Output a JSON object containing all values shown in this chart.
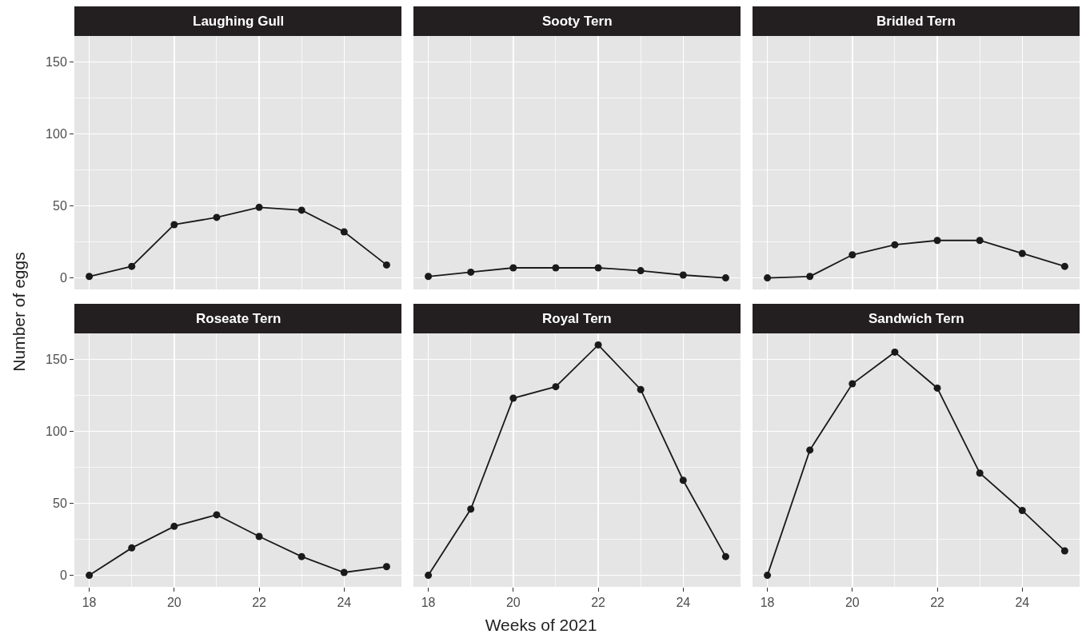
{
  "chart_data": [
    {
      "type": "line",
      "title": "Laughing Gull",
      "ylabel": "Number of eggs",
      "x": [
        18,
        19,
        20,
        21,
        22,
        23,
        24,
        25
      ],
      "series": [
        {
          "color": "#1a1a1a",
          "values": [
            1,
            8,
            37,
            42,
            49,
            47,
            32,
            9
          ]
        }
      ],
      "xlim": [
        17.65,
        25.35
      ],
      "ylim": [
        -8,
        168
      ],
      "xticks": [
        18,
        20,
        22,
        24
      ],
      "yticks": [
        0,
        50,
        100,
        150
      ],
      "grid": true,
      "marker": "circle",
      "line_style": "solid",
      "tick_labels": "y"
    },
    {
      "type": "line",
      "title": "Sooty Tern",
      "x": [
        18,
        19,
        20,
        21,
        22,
        23,
        24,
        25
      ],
      "series": [
        {
          "color": "#1a1a1a",
          "values": [
            1,
            4,
            7,
            7,
            7,
            5,
            2,
            0
          ]
        }
      ],
      "xlim": [
        17.65,
        25.35
      ],
      "ylim": [
        -8,
        168
      ],
      "xticks": [
        18,
        20,
        22,
        24
      ],
      "yticks": [
        0,
        50,
        100,
        150
      ],
      "grid": true,
      "marker": "circle",
      "line_style": "solid",
      "tick_labels": false
    },
    {
      "type": "line",
      "title": "Bridled Tern",
      "x": [
        18,
        19,
        20,
        21,
        22,
        23,
        24,
        25
      ],
      "series": [
        {
          "color": "#1a1a1a",
          "values": [
            0,
            1,
            16,
            23,
            26,
            26,
            17,
            8
          ]
        }
      ],
      "xlim": [
        17.65,
        25.35
      ],
      "ylim": [
        -8,
        168
      ],
      "xticks": [
        18,
        20,
        22,
        24
      ],
      "yticks": [
        0,
        50,
        100,
        150
      ],
      "grid": true,
      "marker": "circle",
      "line_style": "solid",
      "tick_labels": false
    },
    {
      "type": "line",
      "title": "Roseate Tern",
      "x": [
        18,
        19,
        20,
        21,
        22,
        23,
        24,
        25
      ],
      "series": [
        {
          "color": "#1a1a1a",
          "values": [
            0,
            19,
            34,
            42,
            27,
            13,
            2,
            6
          ]
        }
      ],
      "xlim": [
        17.65,
        25.35
      ],
      "ylim": [
        -8,
        168
      ],
      "xticks": [
        18,
        20,
        22,
        24
      ],
      "yticks": [
        0,
        50,
        100,
        150
      ],
      "grid": true,
      "marker": "circle",
      "line_style": "solid"
    },
    {
      "type": "line",
      "title": "Royal Tern",
      "xlabel": "Weeks of 2021",
      "x": [
        18,
        19,
        20,
        21,
        22,
        23,
        24,
        25
      ],
      "series": [
        {
          "color": "#1a1a1a",
          "values": [
            0,
            46,
            123,
            131,
            160,
            129,
            66,
            13
          ]
        }
      ],
      "xlim": [
        17.65,
        25.35
      ],
      "ylim": [
        -8,
        168
      ],
      "xticks": [
        18,
        20,
        22,
        24
      ],
      "yticks": [
        0,
        50,
        100,
        150
      ],
      "grid": true,
      "marker": "circle",
      "line_style": "solid",
      "tick_labels": "x"
    },
    {
      "type": "line",
      "title": "Sandwich Tern",
      "x": [
        18,
        19,
        20,
        21,
        22,
        23,
        24,
        25
      ],
      "series": [
        {
          "color": "#1a1a1a",
          "values": [
            0,
            87,
            133,
            155,
            130,
            71,
            45,
            17
          ]
        }
      ],
      "xlim": [
        17.65,
        25.35
      ],
      "ylim": [
        -8,
        168
      ],
      "xticks": [
        18,
        20,
        22,
        24
      ],
      "yticks": [
        0,
        50,
        100,
        150
      ],
      "grid": true,
      "marker": "circle",
      "line_style": "solid",
      "tick_labels": "x"
    }
  ]
}
